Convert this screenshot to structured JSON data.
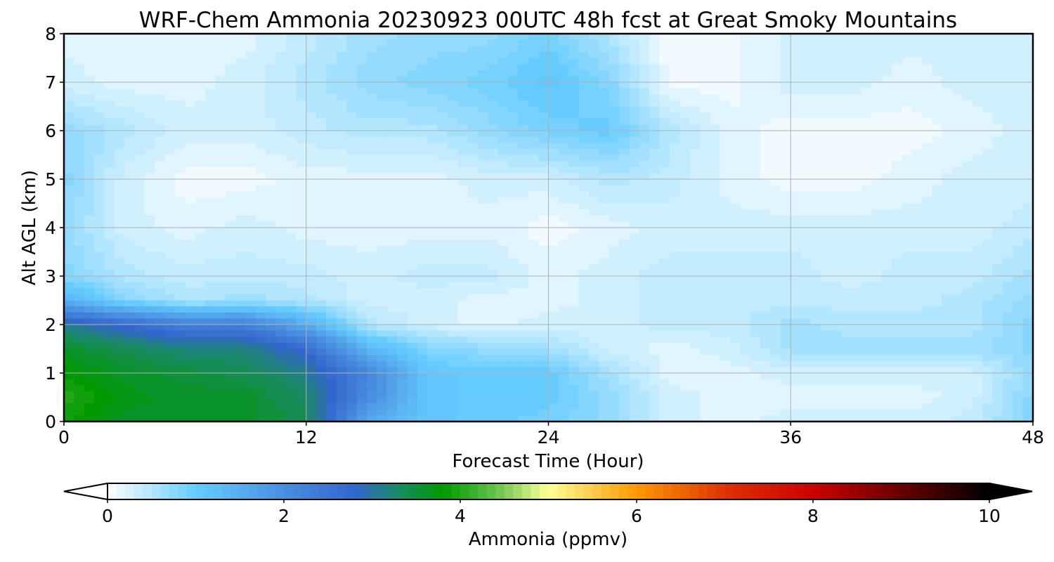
{
  "chart_data": {
    "type": "heatmap",
    "title": "WRF-Chem Ammonia  20230923 00UTC 48h fcst at Great Smoky Mountains",
    "xlabel": "Forecast Time (Hour)",
    "ylabel": "Alt AGL (km)",
    "xlim": [
      0,
      48
    ],
    "ylim": [
      0,
      8
    ],
    "xticks": [
      0,
      12,
      24,
      36,
      48
    ],
    "yticks": [
      0,
      1,
      2,
      3,
      4,
      5,
      6,
      7,
      8
    ],
    "grid": true,
    "colorbar": {
      "label": "Ammonia  (ppmv)",
      "range": [
        0,
        10
      ],
      "ticks": [
        0,
        2,
        4,
        6,
        8,
        10
      ],
      "extend": "both"
    },
    "x": [
      0,
      3,
      6,
      9,
      12,
      15,
      18,
      21,
      24,
      27,
      30,
      33,
      36,
      39,
      42,
      45,
      48
    ],
    "y": [
      0,
      0.5,
      1,
      1.5,
      2,
      2.5,
      3,
      4,
      5,
      6,
      7,
      8
    ],
    "z": [
      [
        3.9,
        3.6,
        3.6,
        3.6,
        3.4,
        1.6,
        1.1,
        1.0,
        0.9,
        0.7,
        0.3,
        0.2,
        0.3,
        0.3,
        0.3,
        0.4,
        0.8
      ],
      [
        4.0,
        3.7,
        3.6,
        3.6,
        3.3,
        2.1,
        1.1,
        1.0,
        1.0,
        0.7,
        0.3,
        0.2,
        0.2,
        0.2,
        0.2,
        0.3,
        0.8
      ],
      [
        3.8,
        3.6,
        3.5,
        3.4,
        3.1,
        2.2,
        1.1,
        1.0,
        1.0,
        0.6,
        0.2,
        0.2,
        0.3,
        0.3,
        0.3,
        0.3,
        0.7
      ],
      [
        3.6,
        3.4,
        3.2,
        3.2,
        2.7,
        1.4,
        0.8,
        0.7,
        0.6,
        0.3,
        0.2,
        0.3,
        0.6,
        0.6,
        0.6,
        0.6,
        0.8
      ],
      [
        3.1,
        2.7,
        2.3,
        2.3,
        1.5,
        0.5,
        0.3,
        0.2,
        0.3,
        0.3,
        0.4,
        0.4,
        0.6,
        0.5,
        0.5,
        0.5,
        0.8
      ],
      [
        1.4,
        0.8,
        0.5,
        0.6,
        0.5,
        0.3,
        0.3,
        0.2,
        0.2,
        0.3,
        0.4,
        0.4,
        0.4,
        0.4,
        0.4,
        0.5,
        0.7
      ],
      [
        0.8,
        0.5,
        0.4,
        0.4,
        0.4,
        0.3,
        0.4,
        0.4,
        0.2,
        0.3,
        0.4,
        0.4,
        0.4,
        0.3,
        0.4,
        0.4,
        0.6
      ],
      [
        0.7,
        0.3,
        0.2,
        0.3,
        0.2,
        0.2,
        0.2,
        0.2,
        0.1,
        0.2,
        0.3,
        0.3,
        0.3,
        0.3,
        0.3,
        0.3,
        0.4
      ],
      [
        0.8,
        0.3,
        0.1,
        0.1,
        0.2,
        0.2,
        0.2,
        0.3,
        0.3,
        0.5,
        0.4,
        0.2,
        0.1,
        0.1,
        0.2,
        0.3,
        0.3
      ],
      [
        0.7,
        0.5,
        0.3,
        0.3,
        0.4,
        0.5,
        0.5,
        0.7,
        0.9,
        1.0,
        0.5,
        0.2,
        0.1,
        0.1,
        0.1,
        0.2,
        0.3
      ],
      [
        0.3,
        0.2,
        0.2,
        0.3,
        0.5,
        0.7,
        0.8,
        0.9,
        1.1,
        0.8,
        0.1,
        0.1,
        0.3,
        0.3,
        0.2,
        0.3,
        0.3
      ],
      [
        0.2,
        0.2,
        0.2,
        0.2,
        0.4,
        0.6,
        0.7,
        0.7,
        0.9,
        0.5,
        0.1,
        0.1,
        0.3,
        0.3,
        0.3,
        0.3,
        0.3
      ]
    ]
  },
  "colors": {
    "stops": [
      {
        "v": 0,
        "c": "#ffffff"
      },
      {
        "v": 1,
        "c": "#66ccff"
      },
      {
        "v": 2,
        "c": "#4a8fe0"
      },
      {
        "v": 2.8,
        "c": "#3366cc"
      },
      {
        "v": 3.3,
        "c": "#1a8a66"
      },
      {
        "v": 3.8,
        "c": "#009900"
      },
      {
        "v": 4.4,
        "c": "#66c24a"
      },
      {
        "v": 5,
        "c": "#ffff99"
      },
      {
        "v": 6,
        "c": "#ff9900"
      },
      {
        "v": 7,
        "c": "#dd3300"
      },
      {
        "v": 8,
        "c": "#cc0000"
      },
      {
        "v": 9,
        "c": "#660000"
      },
      {
        "v": 10,
        "c": "#000000"
      }
    ],
    "grid": "#b0b0b0"
  }
}
